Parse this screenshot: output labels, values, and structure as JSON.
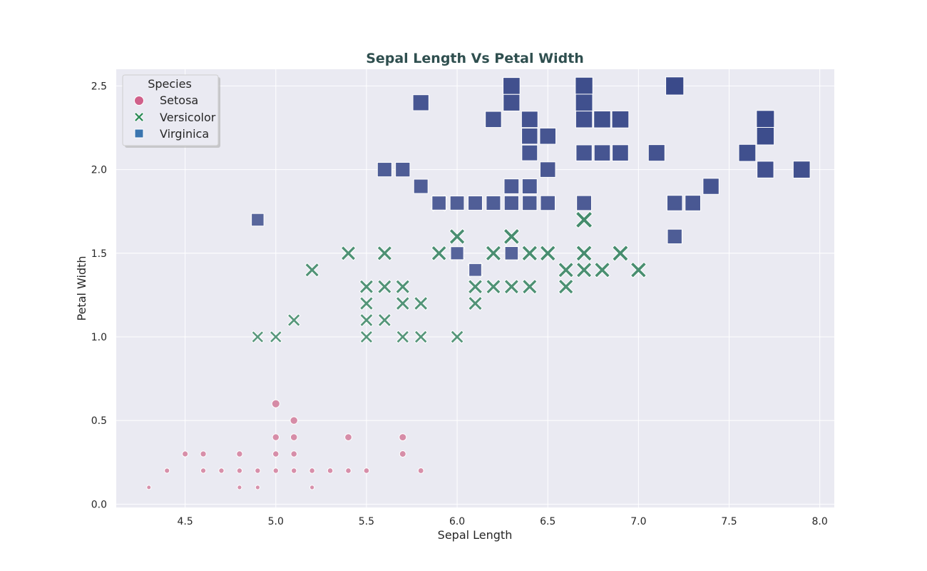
{
  "chart_data": {
    "type": "scatter",
    "title": "Sepal Length Vs Petal Width",
    "xlabel": "Sepal Length",
    "ylabel": "Petal Width",
    "xlim": [
      4.12,
      8.08
    ],
    "ylim": [
      -0.02,
      2.6
    ],
    "xticks": [
      "4.5",
      "5.0",
      "5.5",
      "6.0",
      "6.5",
      "7.0",
      "7.5",
      "8.0"
    ],
    "yticks": [
      "0.0",
      "0.5",
      "1.0",
      "1.5",
      "2.0",
      "2.5"
    ],
    "grid": true,
    "legend": {
      "title": "Species",
      "position": "top-left",
      "entries": [
        "Setosa",
        "Versicolor",
        "Virginica"
      ]
    },
    "colors": {
      "Setosa": "#c8668a",
      "Versicolor": "#2e7d5b",
      "Virginica": "#3a4a8a",
      "legend_Setosa": "#d0608a",
      "legend_Versicolor": "#2e8b57",
      "legend_Virginica": "#3b75af",
      "plot_bg": "#eaeaf2",
      "title": "#2f4f4f"
    },
    "series": [
      {
        "name": "Setosa",
        "marker": "circle",
        "points": [
          [
            4.3,
            0.1
          ],
          [
            4.4,
            0.2
          ],
          [
            4.5,
            0.3
          ],
          [
            4.6,
            0.3
          ],
          [
            4.6,
            0.2
          ],
          [
            4.7,
            0.2
          ],
          [
            4.8,
            0.3
          ],
          [
            4.8,
            0.2
          ],
          [
            4.8,
            0.1
          ],
          [
            4.9,
            0.2
          ],
          [
            4.9,
            0.1
          ],
          [
            5.0,
            0.6
          ],
          [
            5.0,
            0.4
          ],
          [
            5.0,
            0.3
          ],
          [
            5.0,
            0.2
          ],
          [
            5.1,
            0.5
          ],
          [
            5.1,
            0.4
          ],
          [
            5.1,
            0.3
          ],
          [
            5.1,
            0.2
          ],
          [
            5.2,
            0.2
          ],
          [
            5.2,
            0.1
          ],
          [
            5.3,
            0.2
          ],
          [
            5.4,
            0.4
          ],
          [
            5.4,
            0.2
          ],
          [
            5.5,
            0.2
          ],
          [
            5.7,
            0.4
          ],
          [
            5.7,
            0.3
          ],
          [
            5.8,
            0.2
          ]
        ]
      },
      {
        "name": "Versicolor",
        "marker": "x",
        "points": [
          [
            4.9,
            1.0
          ],
          [
            5.0,
            1.0
          ],
          [
            5.1,
            1.1
          ],
          [
            5.2,
            1.4
          ],
          [
            5.4,
            1.5
          ],
          [
            5.5,
            1.3
          ],
          [
            5.5,
            1.2
          ],
          [
            5.5,
            1.1
          ],
          [
            5.5,
            1.0
          ],
          [
            5.6,
            1.5
          ],
          [
            5.6,
            1.3
          ],
          [
            5.6,
            1.1
          ],
          [
            5.7,
            1.3
          ],
          [
            5.7,
            1.2
          ],
          [
            5.7,
            1.0
          ],
          [
            5.8,
            1.2
          ],
          [
            5.8,
            1.0
          ],
          [
            5.9,
            1.8
          ],
          [
            5.9,
            1.5
          ],
          [
            6.0,
            1.6
          ],
          [
            6.0,
            1.5
          ],
          [
            6.0,
            1.0
          ],
          [
            6.1,
            1.4
          ],
          [
            6.1,
            1.3
          ],
          [
            6.1,
            1.2
          ],
          [
            6.2,
            1.5
          ],
          [
            6.2,
            1.3
          ],
          [
            6.3,
            1.6
          ],
          [
            6.3,
            1.5
          ],
          [
            6.3,
            1.3
          ],
          [
            6.4,
            1.5
          ],
          [
            6.4,
            1.3
          ],
          [
            6.5,
            1.5
          ],
          [
            6.6,
            1.4
          ],
          [
            6.6,
            1.3
          ],
          [
            6.7,
            1.7
          ],
          [
            6.7,
            1.5
          ],
          [
            6.7,
            1.4
          ],
          [
            6.8,
            1.4
          ],
          [
            6.9,
            1.5
          ],
          [
            7.0,
            1.4
          ]
        ]
      },
      {
        "name": "Virginica",
        "marker": "square",
        "points": [
          [
            4.9,
            1.7
          ],
          [
            5.6,
            2.0
          ],
          [
            5.7,
            2.0
          ],
          [
            5.8,
            2.4
          ],
          [
            5.8,
            1.9
          ],
          [
            5.9,
            1.8
          ],
          [
            6.0,
            1.8
          ],
          [
            6.0,
            1.5
          ],
          [
            6.1,
            1.8
          ],
          [
            6.1,
            1.4
          ],
          [
            6.2,
            2.3
          ],
          [
            6.2,
            1.8
          ],
          [
            6.3,
            2.5
          ],
          [
            6.3,
            2.4
          ],
          [
            6.3,
            1.9
          ],
          [
            6.3,
            1.8
          ],
          [
            6.3,
            1.5
          ],
          [
            6.4,
            2.3
          ],
          [
            6.4,
            2.2
          ],
          [
            6.4,
            2.1
          ],
          [
            6.4,
            1.9
          ],
          [
            6.4,
            1.8
          ],
          [
            6.5,
            2.2
          ],
          [
            6.5,
            2.0
          ],
          [
            6.5,
            1.8
          ],
          [
            6.7,
            2.5
          ],
          [
            6.7,
            2.4
          ],
          [
            6.7,
            2.3
          ],
          [
            6.7,
            2.1
          ],
          [
            6.7,
            1.8
          ],
          [
            6.8,
            2.3
          ],
          [
            6.8,
            2.1
          ],
          [
            6.9,
            2.3
          ],
          [
            6.9,
            2.1
          ],
          [
            7.1,
            2.1
          ],
          [
            7.2,
            2.5
          ],
          [
            7.2,
            1.8
          ],
          [
            7.2,
            1.6
          ],
          [
            7.3,
            1.8
          ],
          [
            7.4,
            1.9
          ],
          [
            7.6,
            2.1
          ],
          [
            7.7,
            2.3
          ],
          [
            7.7,
            2.2
          ],
          [
            7.7,
            2.0
          ],
          [
            7.9,
            2.0
          ]
        ]
      }
    ]
  }
}
